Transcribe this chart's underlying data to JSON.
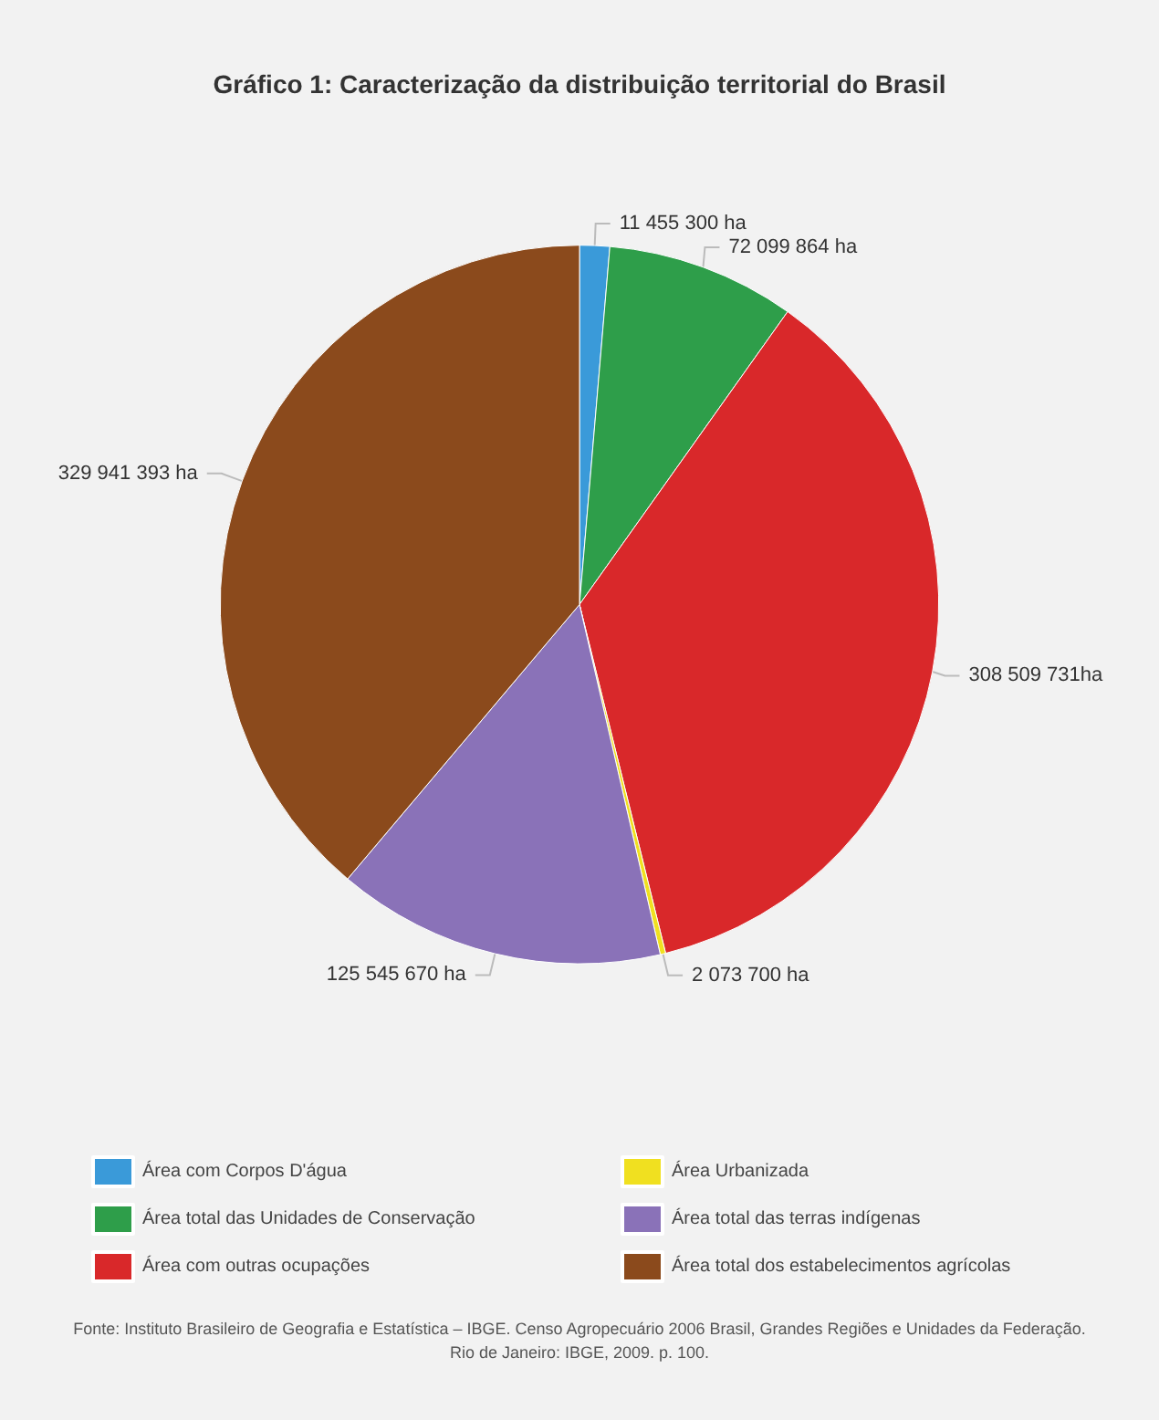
{
  "chart_data": {
    "type": "pie",
    "title": "Gráfico 1: Caracterização da distribuição territorial do Brasil",
    "categories": [
      "Área com Corpos D'água",
      "Área total das Unidades de Conservação",
      "Área com outras ocupações",
      "Área Urbanizada",
      "Área total das terras indígenas",
      "Área total dos estabelecimentos agrícolas"
    ],
    "values": [
      11455300,
      72099864,
      308509731,
      2073700,
      125545670,
      329941393
    ],
    "colors": [
      "#3a9ad9",
      "#2e9e4a",
      "#d9282a",
      "#f0e020",
      "#8a72b8",
      "#8b4a1c"
    ],
    "value_labels": [
      "11 455 300 ha",
      "72 099 864 ha",
      "308 509 731ha",
      "2 073 700 ha",
      "125 545 670 ha",
      "329 941 393 ha"
    ],
    "legend": "bottom",
    "annotations": [
      "Fonte: Instituto Brasileiro de Geografia e Estatística – IBGE. Censo Agropecuário 2006 Brasil, Grandes Regiões e Unidades da Federação. Rio de Janeiro: IBGE, 2009. p. 100."
    ]
  }
}
